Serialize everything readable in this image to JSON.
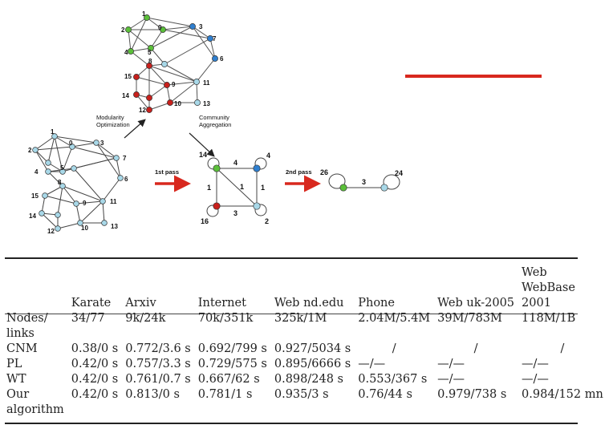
{
  "diagram": {
    "labels": {
      "modularity": [
        "Modularity",
        "Optimization"
      ],
      "community": [
        "Community",
        "Aggregation"
      ],
      "first_pass": "1st pass",
      "second_pass": "2nd pass"
    },
    "original_nodes": [
      "0",
      "1",
      "2",
      "3",
      "4",
      "5",
      "6",
      "7",
      "8",
      "9",
      "10",
      "11",
      "12",
      "13",
      "14",
      "15"
    ],
    "pass1": {
      "node_weights": [
        "14",
        "4",
        "16",
        "2"
      ],
      "edge_weights": [
        "4",
        "1",
        "1",
        "1",
        "3"
      ]
    },
    "pass2": {
      "node_weights": [
        "26",
        "24"
      ],
      "edge_weight": "3"
    },
    "colors": {
      "green": "#5bbf3a",
      "blue": "#2f7fcf",
      "red": "#c8201c",
      "light": "#a8d8e8",
      "arrow": "#d8281e"
    }
  },
  "table": {
    "headers": [
      "",
      "Karate",
      "Arxiv",
      "Internet",
      "Web nd.edu",
      "Phone",
      "Web uk-2005",
      [
        "Web",
        "WebBase",
        "2001"
      ]
    ],
    "rows": [
      {
        "label": [
          "Nodes/",
          "links"
        ],
        "values": [
          "34/77",
          "9k/24k",
          "70k/351k",
          "325k/1M",
          "2.04M/5.4M",
          "39M/783M",
          "118M/1B"
        ]
      },
      {
        "label": [
          "CNM"
        ],
        "values": [
          "0.38/0 s",
          "0.772/3.6 s",
          "0.692/799 s",
          "0.927/5034 s",
          "/",
          "/",
          "/"
        ]
      },
      {
        "label": [
          "PL"
        ],
        "values": [
          "0.42/0 s",
          "0.757/3.3 s",
          "0.729/575 s",
          "0.895/6666 s",
          "—/—",
          "—/—",
          "—/—"
        ]
      },
      {
        "label": [
          "WT"
        ],
        "values": [
          "0.42/0 s",
          "0.761/0.7 s",
          "0.667/62 s",
          "0.898/248 s",
          "0.553/367 s",
          "—/—",
          "—/—"
        ]
      },
      {
        "label": [
          "Our",
          "algorithm"
        ],
        "values": [
          "0.42/0 s",
          "0.813/0 s",
          "0.781/1 s",
          "0.935/3 s",
          "0.76/44 s",
          "0.979/738 s",
          "0.984/152 mn"
        ]
      }
    ]
  }
}
